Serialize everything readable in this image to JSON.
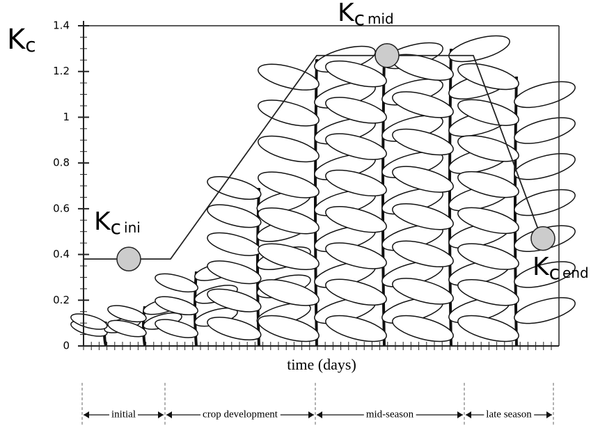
{
  "chart_data": {
    "type": "line",
    "ylabel": {
      "symbol": "K",
      "subscript": "c"
    },
    "xlabel": "time (days)",
    "categories": [
      null,
      null,
      null,
      null,
      null
    ],
    "series": [
      {
        "color": "#222222",
        "values": [
          0.38,
          0.38,
          1.27,
          1.27,
          0.47
        ]
      }
    ],
    "ylim": [
      0,
      1.4
    ],
    "yticks": [
      0,
      0.2,
      0.4,
      0.6,
      0.8,
      1,
      1.2,
      1.4
    ],
    "annotations": [
      {
        "symbol": "K",
        "subscript": "c",
        "stage": "ini"
      },
      {
        "symbol": "K",
        "subscript": "c",
        "stage": "mid"
      },
      {
        "symbol": "K",
        "subscript": "c",
        "stage": "end"
      }
    ],
    "stages": [
      "initial",
      "crop development",
      "mid-season",
      "late season"
    ],
    "grid": false
  }
}
